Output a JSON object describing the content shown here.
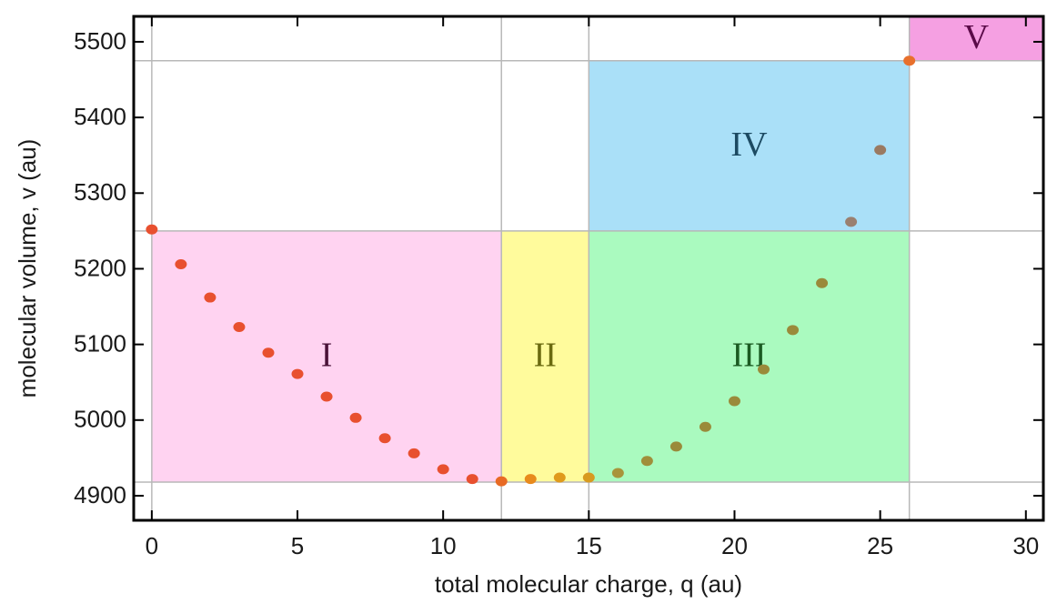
{
  "chart_data": {
    "type": "scatter",
    "x_label": "total molecular charge, q (au)",
    "y_label": "molecular volume, v (au)",
    "x": [
      0,
      1,
      2,
      3,
      4,
      5,
      6,
      7,
      8,
      9,
      10,
      11,
      12,
      13,
      14,
      15,
      16,
      17,
      18,
      19,
      20,
      21,
      22,
      23,
      24,
      25,
      26
    ],
    "values": [
      5252,
      5206,
      5162,
      5123,
      5089,
      5061,
      5031,
      5003,
      4976,
      4956,
      4935,
      4922,
      4919,
      4922,
      4924,
      4924,
      4930,
      4946,
      4965,
      4991,
      5025,
      5067,
      5119,
      5181,
      5262,
      5357,
      5475
    ],
    "point_colors": [
      "#e8502f",
      "#e8502f",
      "#e8502f",
      "#e8502f",
      "#e8502f",
      "#e8502f",
      "#e8502f",
      "#e8502f",
      "#e8502f",
      "#e8502f",
      "#e8502f",
      "#e8502f",
      "#e86a24",
      "#e88a1c",
      "#e09a1c",
      "#d89a20",
      "#a8943a",
      "#a08e3a",
      "#9a8a3a",
      "#9a8a3a",
      "#9a8a3a",
      "#9a8a3a",
      "#9a8a3a",
      "#9a8a3a",
      "#9a8070",
      "#9a7a62",
      "#e8702c"
    ],
    "xlim": [
      -0.62,
      30.6
    ],
    "ylim": [
      4867.5,
      5533.6
    ],
    "xticks": [
      0,
      5,
      10,
      15,
      20,
      25,
      30
    ],
    "yticks": [
      4900,
      5000,
      5100,
      5200,
      5300,
      5400,
      5500
    ],
    "gridlines_x": [
      0,
      12,
      15,
      26
    ],
    "gridlines_y": [
      4918,
      5250,
      5475
    ],
    "regions": [
      {
        "label": "I",
        "x": [
          0,
          12
        ],
        "y": [
          4918,
          5250
        ],
        "color": "#ffd3f1",
        "text_color": "#4a1238"
      },
      {
        "label": "II",
        "x": [
          12,
          15
        ],
        "y": [
          4918,
          5250
        ],
        "color": "#fffb9c",
        "text_color": "#6b6a10"
      },
      {
        "label": "III",
        "x": [
          15,
          26
        ],
        "y": [
          4918,
          5250
        ],
        "color": "#aafabf",
        "text_color": "#1b5a22"
      },
      {
        "label": "IV",
        "x": [
          15,
          26
        ],
        "y": [
          5250,
          5475
        ],
        "color": "#aae0f8",
        "text_color": "#1c4a62"
      },
      {
        "label": "V",
        "x": [
          26,
          30.6
        ],
        "y": [
          5475,
          5533.6
        ],
        "color": "#f5a0e2",
        "text_color": "#5a0a48"
      }
    ]
  }
}
